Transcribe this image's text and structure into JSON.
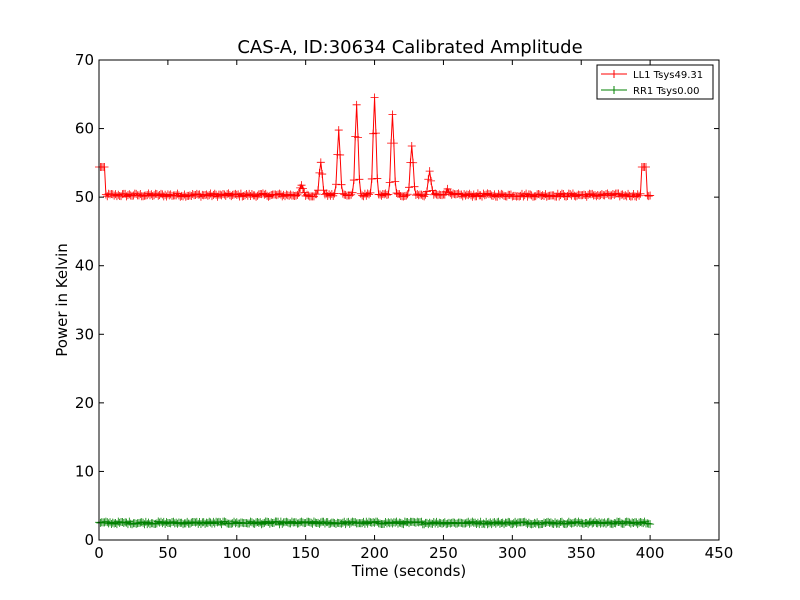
{
  "chart_data": {
    "type": "line",
    "title": "CAS-A, ID:30634 Calibrated Amplitude",
    "xlabel": "Time (seconds)",
    "ylabel": "Power in Kelvin",
    "xlim": [
      0,
      450
    ],
    "ylim": [
      0,
      70
    ],
    "xticks": [
      "0",
      "50",
      "100",
      "150",
      "200",
      "250",
      "300",
      "350",
      "400",
      "450"
    ],
    "yticks": [
      "0",
      "10",
      "20",
      "30",
      "40",
      "50",
      "60",
      "70"
    ],
    "grid": false,
    "legend_position": "top-right",
    "marker": "plus",
    "series": [
      {
        "name": "LL1 Tsys49.31",
        "color": "#ff0000",
        "x_range": [
          0,
          400
        ],
        "baseline": 50.3,
        "noise": 0.25,
        "step_sections": [
          {
            "start": 0,
            "end": 4,
            "value": 54.4
          },
          {
            "start": 394,
            "end": 397,
            "value": 54.4
          }
        ],
        "peaks": [
          {
            "x": 147,
            "value": 51.8
          },
          {
            "x": 161,
            "value": 55.2
          },
          {
            "x": 174,
            "value": 59.7
          },
          {
            "x": 187,
            "value": 63.6
          },
          {
            "x": 200,
            "value": 64.5
          },
          {
            "x": 213,
            "value": 62.1
          },
          {
            "x": 227,
            "value": 57.6
          },
          {
            "x": 240,
            "value": 53.7
          },
          {
            "x": 253,
            "value": 51.2
          }
        ]
      },
      {
        "name": "RR1 Tsys0.00",
        "color": "#008000",
        "x_range": [
          0,
          400
        ],
        "baseline": 2.5,
        "noise": 0.2,
        "step_sections": [],
        "peaks": []
      }
    ]
  }
}
